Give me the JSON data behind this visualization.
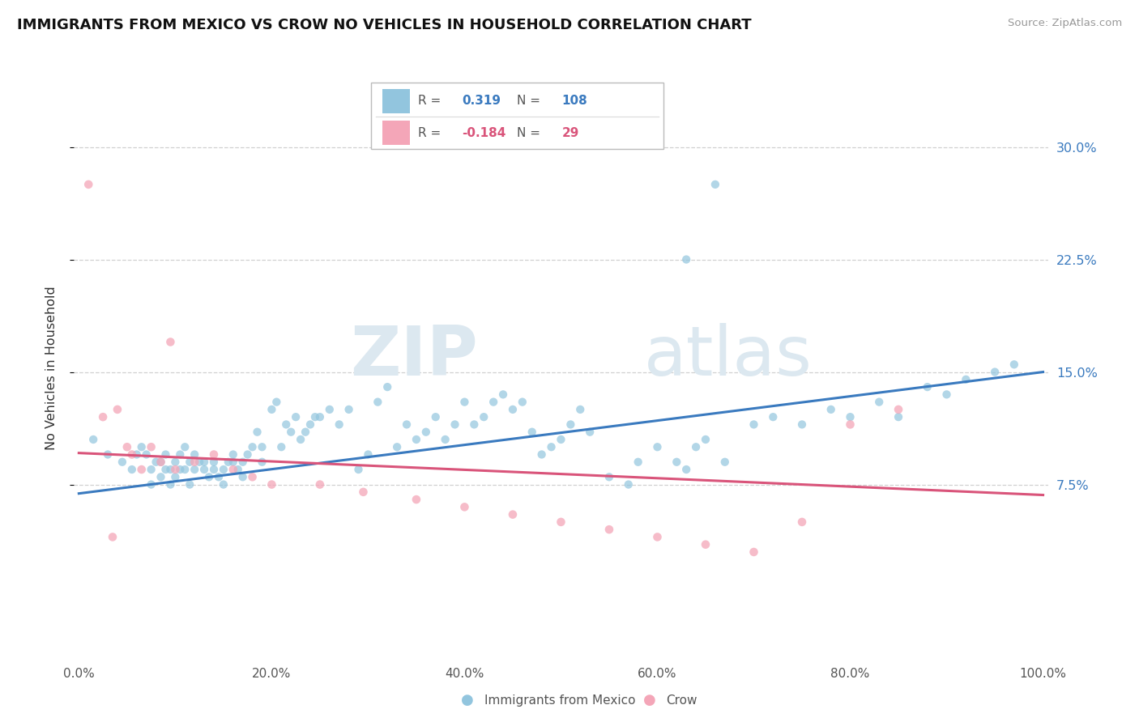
{
  "title": "IMMIGRANTS FROM MEXICO VS CROW NO VEHICLES IN HOUSEHOLD CORRELATION CHART",
  "source": "Source: ZipAtlas.com",
  "ylabel": "No Vehicles in Household",
  "ytick_vals": [
    0.075,
    0.15,
    0.225,
    0.3
  ],
  "ytick_labels": [
    "7.5%",
    "15.0%",
    "22.5%",
    "30.0%"
  ],
  "xtick_vals": [
    0.0,
    0.2,
    0.4,
    0.6,
    0.8,
    1.0
  ],
  "xtick_labels": [
    "0.0%",
    "20.0%",
    "40.0%",
    "60.0%",
    "80.0%",
    "100.0%"
  ],
  "xlim": [
    -0.005,
    1.005
  ],
  "ylim": [
    -0.04,
    0.345
  ],
  "blue_label": "Immigrants from Mexico",
  "pink_label": "Crow",
  "blue_R": "0.319",
  "blue_N": "108",
  "pink_R": "-0.184",
  "pink_N": "29",
  "blue_dot_color": "#92c5de",
  "pink_dot_color": "#f4a6b8",
  "blue_line_color": "#3a7abf",
  "pink_line_color": "#d9547a",
  "watermark_top": "ZIP",
  "watermark_bot": "atlas",
  "blue_scatter_x": [
    0.015,
    0.03,
    0.045,
    0.055,
    0.06,
    0.065,
    0.07,
    0.075,
    0.075,
    0.08,
    0.085,
    0.085,
    0.09,
    0.09,
    0.095,
    0.095,
    0.1,
    0.1,
    0.105,
    0.105,
    0.11,
    0.11,
    0.115,
    0.115,
    0.12,
    0.12,
    0.125,
    0.13,
    0.13,
    0.135,
    0.14,
    0.14,
    0.145,
    0.15,
    0.15,
    0.155,
    0.16,
    0.16,
    0.165,
    0.17,
    0.17,
    0.175,
    0.18,
    0.185,
    0.19,
    0.19,
    0.2,
    0.205,
    0.21,
    0.215,
    0.22,
    0.225,
    0.23,
    0.235,
    0.24,
    0.245,
    0.25,
    0.26,
    0.27,
    0.28,
    0.29,
    0.3,
    0.31,
    0.32,
    0.33,
    0.34,
    0.35,
    0.36,
    0.37,
    0.38,
    0.39,
    0.4,
    0.41,
    0.42,
    0.43,
    0.44,
    0.45,
    0.46,
    0.47,
    0.48,
    0.49,
    0.5,
    0.51,
    0.52,
    0.53,
    0.55,
    0.57,
    0.58,
    0.6,
    0.62,
    0.63,
    0.64,
    0.65,
    0.67,
    0.7,
    0.72,
    0.75,
    0.78,
    0.8,
    0.83,
    0.85,
    0.88,
    0.9,
    0.92,
    0.95,
    0.97,
    0.63,
    0.66
  ],
  "blue_scatter_y": [
    0.105,
    0.095,
    0.09,
    0.085,
    0.095,
    0.1,
    0.095,
    0.075,
    0.085,
    0.09,
    0.08,
    0.09,
    0.085,
    0.095,
    0.075,
    0.085,
    0.08,
    0.09,
    0.085,
    0.095,
    0.1,
    0.085,
    0.075,
    0.09,
    0.085,
    0.095,
    0.09,
    0.085,
    0.09,
    0.08,
    0.085,
    0.09,
    0.08,
    0.075,
    0.085,
    0.09,
    0.09,
    0.095,
    0.085,
    0.08,
    0.09,
    0.095,
    0.1,
    0.11,
    0.09,
    0.1,
    0.125,
    0.13,
    0.1,
    0.115,
    0.11,
    0.12,
    0.105,
    0.11,
    0.115,
    0.12,
    0.12,
    0.125,
    0.115,
    0.125,
    0.085,
    0.095,
    0.13,
    0.14,
    0.1,
    0.115,
    0.105,
    0.11,
    0.12,
    0.105,
    0.115,
    0.13,
    0.115,
    0.12,
    0.13,
    0.135,
    0.125,
    0.13,
    0.11,
    0.095,
    0.1,
    0.105,
    0.115,
    0.125,
    0.11,
    0.08,
    0.075,
    0.09,
    0.1,
    0.09,
    0.085,
    0.1,
    0.105,
    0.09,
    0.115,
    0.12,
    0.115,
    0.125,
    0.12,
    0.13,
    0.12,
    0.14,
    0.135,
    0.145,
    0.15,
    0.155,
    0.225,
    0.275
  ],
  "pink_scatter_x": [
    0.01,
    0.025,
    0.035,
    0.04,
    0.05,
    0.055,
    0.065,
    0.075,
    0.085,
    0.095,
    0.1,
    0.12,
    0.14,
    0.16,
    0.18,
    0.2,
    0.25,
    0.295,
    0.35,
    0.4,
    0.45,
    0.5,
    0.55,
    0.6,
    0.65,
    0.7,
    0.75,
    0.8,
    0.85
  ],
  "pink_scatter_y": [
    0.275,
    0.12,
    0.04,
    0.125,
    0.1,
    0.095,
    0.085,
    0.1,
    0.09,
    0.17,
    0.085,
    0.09,
    0.095,
    0.085,
    0.08,
    0.075,
    0.075,
    0.07,
    0.065,
    0.06,
    0.055,
    0.05,
    0.045,
    0.04,
    0.035,
    0.03,
    0.05,
    0.115,
    0.125
  ],
  "blue_trend_x": [
    0.0,
    1.0
  ],
  "blue_trend_y": [
    0.069,
    0.15
  ],
  "pink_trend_x": [
    0.0,
    1.0
  ],
  "pink_trend_y": [
    0.096,
    0.068
  ]
}
